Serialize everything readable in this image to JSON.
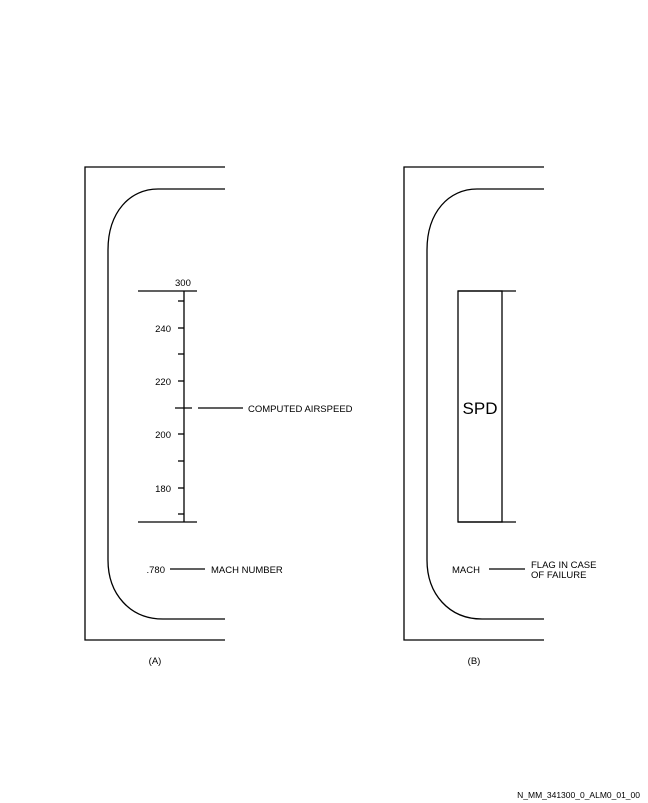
{
  "panel_a": {
    "scale_top_label": "300",
    "ticks": [
      "240",
      "220",
      "200",
      "180"
    ],
    "airspeed_callout": "COMPUTED AIRSPEED",
    "mach_value": ".780",
    "mach_callout": "MACH NUMBER",
    "caption": "(A)"
  },
  "panel_b": {
    "flag_text": "SPD",
    "mach_label": "MACH",
    "failure_callout_line1": "FLAG IN CASE",
    "failure_callout_line2": "OF FAILURE",
    "caption": "(B)"
  },
  "figure_ref": "N_MM_341300_0_ALM0_01_00"
}
